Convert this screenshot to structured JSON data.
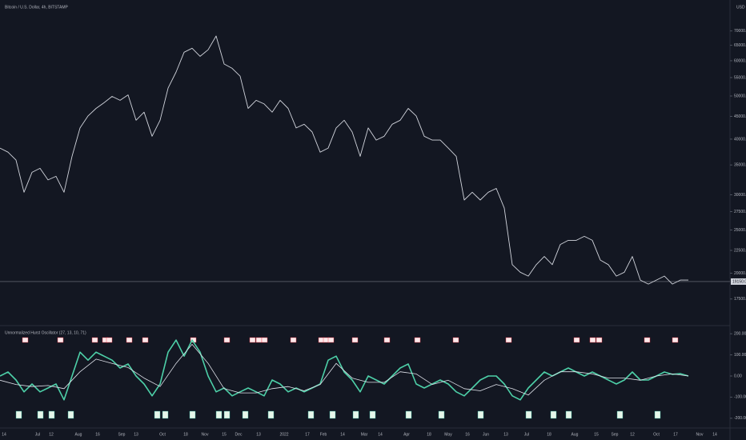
{
  "header": {
    "title": "Bitcoin / U.S. Dollar, 4h, BITSTAMP",
    "currency": "USD"
  },
  "time_axis": {
    "labels": [
      "14",
      "Jul",
      "12",
      "Aug",
      "16",
      "Sep",
      "13",
      "Oct",
      "18",
      "Nov",
      "15",
      "Dec",
      "13",
      "2022",
      "17",
      "Feb",
      "14",
      "Mar",
      "14",
      "Apr",
      "18",
      "May",
      "16",
      "Jun",
      "13",
      "Jul",
      "18",
      "Aug",
      "15",
      "Sep",
      "12",
      "Oct",
      "17",
      "Nov",
      "14"
    ]
  },
  "chart_data": [
    {
      "type": "line",
      "log_scale": true,
      "color": "#d1d4dc",
      "values": [
        38200,
        37400,
        35900,
        30400,
        33700,
        34400,
        32400,
        33000,
        30400,
        36600,
        42400,
        45100,
        46900,
        48300,
        49900,
        48900,
        50300,
        44100,
        46000,
        40600,
        44100,
        52100,
        56600,
        62700,
        64000,
        61400,
        63500,
        68200,
        59000,
        57700,
        55400,
        46900,
        48900,
        48000,
        46000,
        48900,
        46900,
        42400,
        43200,
        41500,
        37400,
        38200,
        42400,
        44100,
        41500,
        36600,
        42400,
        39800,
        40600,
        43200,
        44100,
        46900,
        45100,
        40600,
        39800,
        39800,
        38200,
        36600,
        29200,
        30400,
        29200,
        30400,
        31000,
        28000,
        20900,
        20100,
        19700,
        20900,
        21800,
        20900,
        23200,
        23700,
        23700,
        24200,
        23700,
        21400,
        20900,
        19700,
        20100,
        21800,
        19300,
        18900,
        19300,
        19700,
        18900,
        19300,
        19300
      ],
      "ylim": [
        15000,
        75000
      ],
      "yticks": [
        {
          "value": 70000,
          "label": "70000.00"
        },
        {
          "value": 65000,
          "label": "65000.00"
        },
        {
          "value": 60000,
          "label": "60000.00"
        },
        {
          "value": 55000,
          "label": "55000.00"
        },
        {
          "value": 50000,
          "label": "50000.00"
        },
        {
          "value": 45000,
          "label": "45000.00"
        },
        {
          "value": 40000,
          "label": "40000.00"
        },
        {
          "value": 35000,
          "label": "35000.00"
        },
        {
          "value": 30000,
          "label": "30000.00"
        },
        {
          "value": 27500,
          "label": "27500.00"
        },
        {
          "value": 25000,
          "label": "25000.00"
        },
        {
          "value": 22500,
          "label": "22500.00"
        },
        {
          "value": 20000,
          "label": "20000.00"
        },
        {
          "value": 17500,
          "label": "17500.00"
        }
      ],
      "last_price": {
        "value": 19150,
        "label": "19150.00"
      }
    },
    {
      "type": "line",
      "title": "Unnormalized Hurst Oscillator (27, 13, 10, 71)",
      "series": [
        {
          "color": "#4dd0a8",
          "values": [
            0,
            19,
            -19,
            -75,
            -38,
            -75,
            -57,
            -38,
            -113,
            0,
            113,
            75,
            113,
            94,
            75,
            38,
            57,
            0,
            -38,
            -94,
            -38,
            113,
            170,
            94,
            170,
            113,
            0,
            -75,
            -57,
            -94,
            -75,
            -57,
            -75,
            -94,
            -19,
            -38,
            -75,
            -57,
            -75,
            -57,
            -38,
            75,
            94,
            19,
            -19,
            -75,
            0,
            -19,
            -38,
            0,
            38,
            57,
            -38,
            -57,
            -38,
            -19,
            -38,
            -75,
            -94,
            -57,
            -19,
            0,
            0,
            -38,
            -94,
            -113,
            -57,
            -19,
            19,
            0,
            19,
            38,
            19,
            0,
            19,
            0,
            -19,
            -38,
            -19,
            19,
            -19,
            -19,
            0,
            19,
            8,
            11,
            0
          ]
        },
        {
          "color": "#e0e3eb",
          "values": [
            -20,
            -40,
            -50,
            -45,
            -60,
            20,
            80,
            60,
            40,
            -10,
            -50,
            60,
            150,
            60,
            -60,
            -80,
            -80,
            -60,
            -50,
            -70,
            -40,
            60,
            -10,
            -30,
            -30,
            20,
            10,
            -40,
            -20,
            -60,
            -70,
            -40,
            -60,
            -90,
            -20,
            20,
            20,
            10,
            -10,
            -10,
            -20,
            0,
            10,
            0
          ]
        }
      ],
      "ylim": [
        -250,
        250
      ],
      "yticks": [
        {
          "value": 200,
          "label": "200.00"
        },
        {
          "value": 100,
          "label": "100.00"
        },
        {
          "value": 0,
          "label": "0.00"
        },
        {
          "value": -100,
          "label": "-100.00"
        },
        {
          "value": -200,
          "label": "-200.00"
        }
      ]
    }
  ]
}
